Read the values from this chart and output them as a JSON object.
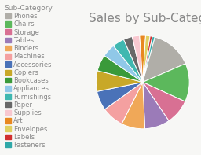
{
  "title": "Sales by Sub-Category",
  "legend_title": "Sub-Category",
  "categories": [
    "Phones",
    "Chairs",
    "Storage",
    "Tables",
    "Binders",
    "Machines",
    "Accessories",
    "Copiers",
    "Bookcases",
    "Appliances",
    "Furnishings",
    "Paper",
    "Supplies",
    "Art",
    "Envelopes",
    "Labels",
    "Fasteners"
  ],
  "colors": [
    "#b0aea8",
    "#5cb85c",
    "#d87093",
    "#9b7bb8",
    "#f0a858",
    "#f4a0a0",
    "#4a72b8",
    "#c8a828",
    "#3a9a3a",
    "#90c8e8",
    "#40b8b0",
    "#686868",
    "#f8c8d0",
    "#e88820",
    "#e0d060",
    "#d03030",
    "#30a8a8"
  ],
  "values": [
    14.0,
    13.0,
    8.5,
    8.5,
    8.0,
    7.5,
    6.5,
    7.0,
    5.5,
    4.5,
    4.0,
    3.0,
    2.5,
    2.0,
    1.5,
    0.8,
    0.8
  ],
  "startangle": 75,
  "background_color": "#f7f7f5",
  "title_fontsize": 11,
  "legend_fontsize": 6.0
}
